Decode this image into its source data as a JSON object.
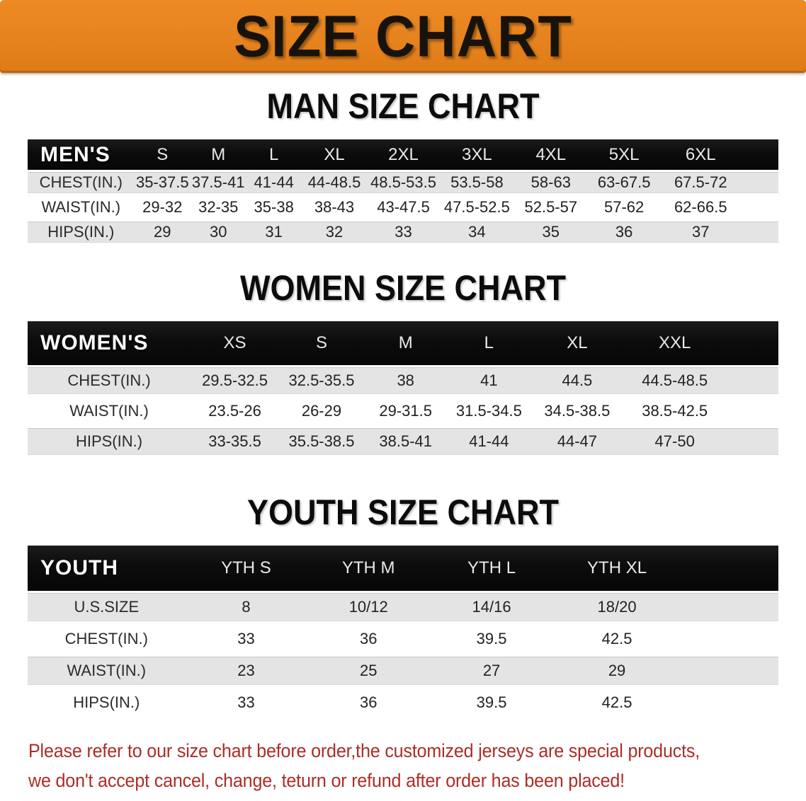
{
  "banner": {
    "title": "SIZE CHART",
    "bg_color": "#E6831F",
    "text_color": "#17130C"
  },
  "sections": [
    {
      "heading": "MAN SIZE CHART",
      "table": {
        "header_label": "MEN'S",
        "sizes": [
          "S",
          "M",
          "L",
          "XL",
          "2XL",
          "3XL",
          "4XL",
          "5XL",
          "6XL"
        ],
        "rows": [
          {
            "label": "CHEST(IN.)",
            "values": [
              "35-37.5",
              "37.5-41",
              "41-44",
              "44-48.5",
              "48.5-53.5",
              "53.5-58",
              "58-63",
              "63-67.5",
              "67.5-72"
            ]
          },
          {
            "label": "WAIST(IN.)",
            "values": [
              "29-32",
              "32-35",
              "35-38",
              "38-43",
              "43-47.5",
              "47.5-52.5",
              "52.5-57",
              "57-62",
              "62-66.5"
            ]
          },
          {
            "label": "HIPS(IN.)",
            "values": [
              "29",
              "30",
              "31",
              "32",
              "33",
              "34",
              "35",
              "36",
              "37"
            ]
          }
        ]
      }
    },
    {
      "heading": "WOMEN SIZE CHART",
      "table": {
        "header_label": "WOMEN'S",
        "sizes": [
          "XS",
          "S",
          "M",
          "L",
          "XL",
          "XXL"
        ],
        "rows": [
          {
            "label": "CHEST(IN.)",
            "values": [
              "29.5-32.5",
              "32.5-35.5",
              "38",
              "41",
              "44.5",
              "44.5-48.5"
            ]
          },
          {
            "label": "WAIST(IN.)",
            "values": [
              "23.5-26",
              "26-29",
              "29-31.5",
              "31.5-34.5",
              "34.5-38.5",
              "38.5-42.5"
            ]
          },
          {
            "label": "HIPS(IN.)",
            "values": [
              "33-35.5",
              "35.5-38.5",
              "38.5-41",
              "41-44",
              "44-47",
              "47-50"
            ]
          }
        ]
      }
    },
    {
      "heading": "YOUTH SIZE CHART",
      "table": {
        "header_label": "YOUTH",
        "sizes": [
          "YTH S",
          "YTH M",
          "YTH L",
          "YTH XL"
        ],
        "rows": [
          {
            "label": "U.S.SIZE",
            "values": [
              "8",
              "10/12",
              "14/16",
              "18/20"
            ]
          },
          {
            "label": "CHEST(IN.)",
            "values": [
              "33",
              "36",
              "39.5",
              "42.5"
            ]
          },
          {
            "label": "WAIST(IN.)",
            "values": [
              "23",
              "25",
              "27",
              "29"
            ]
          },
          {
            "label": "HIPS(IN.)",
            "values": [
              "33",
              "36",
              "39.5",
              "42.5"
            ]
          }
        ]
      }
    }
  ],
  "colors": {
    "header_bar": "#0D0C0C",
    "row_gray": "#E4E4E4",
    "disclaimer_red": "#AC2D27"
  },
  "disclaimer": {
    "line1": "Please refer to our size chart before order,the customized jerseys are special products,",
    "line2": "we don't accept cancel, change, teturn or refund after order has been placed!"
  }
}
